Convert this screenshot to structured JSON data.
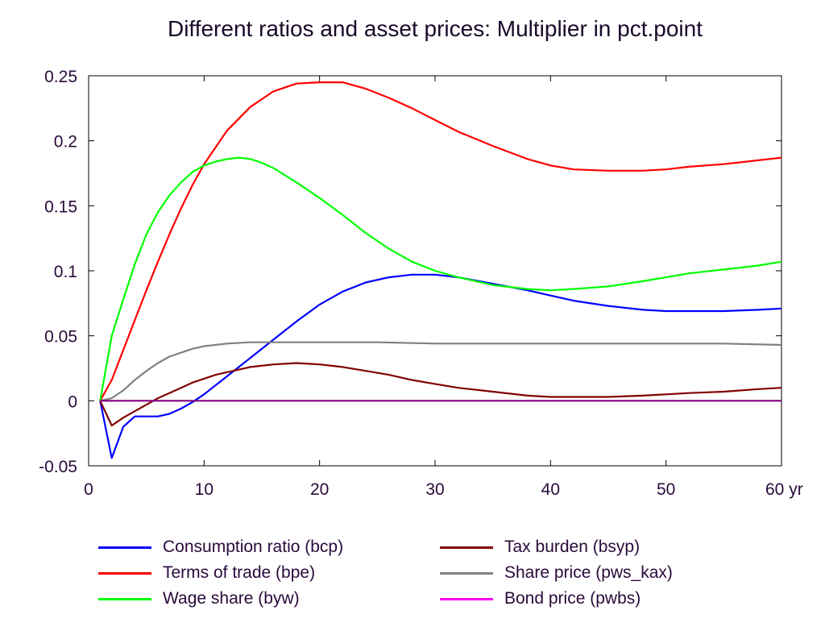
{
  "chart_data": {
    "type": "line",
    "title": "Different ratios and asset prices: Multiplier in pct.point",
    "xlabel": "",
    "ylabel": "",
    "xlim": [
      0,
      60
    ],
    "ylim": [
      -0.05,
      0.25
    ],
    "x_ticks": [
      0,
      10,
      20,
      30,
      40,
      50,
      60
    ],
    "x_tick_labels": [
      "0",
      "10",
      "20",
      "30",
      "40",
      "50",
      "60 yr"
    ],
    "y_ticks": [
      -0.05,
      0,
      0.05,
      0.1,
      0.15,
      0.2,
      0.25
    ],
    "y_tick_labels": [
      "-0.05",
      "0",
      "0.05",
      "0.1",
      "0.15",
      "0.2",
      "0.25"
    ],
    "grid": false,
    "legend_position": "bottom",
    "series": [
      {
        "name": "Consumption ratio (bcp)",
        "color": "#0000ff",
        "x": [
          1,
          2,
          3,
          4,
          5,
          6,
          7,
          8,
          9,
          10,
          12,
          14,
          16,
          18,
          20,
          22,
          24,
          26,
          28,
          30,
          32,
          35,
          38,
          40,
          42,
          45,
          48,
          50,
          52,
          55,
          58,
          60
        ],
        "y": [
          0,
          -0.044,
          -0.02,
          -0.012,
          -0.012,
          -0.012,
          -0.01,
          -0.006,
          -0.001,
          0.005,
          0.019,
          0.033,
          0.047,
          0.061,
          0.074,
          0.084,
          0.091,
          0.095,
          0.097,
          0.097,
          0.095,
          0.09,
          0.085,
          0.081,
          0.077,
          0.073,
          0.07,
          0.069,
          0.069,
          0.069,
          0.07,
          0.071
        ]
      },
      {
        "name": "Terms of trade (bpe)",
        "color": "#ff0000",
        "x": [
          1,
          2,
          3,
          4,
          5,
          6,
          7,
          8,
          9,
          10,
          12,
          14,
          16,
          18,
          20,
          22,
          24,
          26,
          28,
          30,
          32,
          35,
          38,
          40,
          42,
          45,
          48,
          50,
          52,
          55,
          58,
          60
        ],
        "y": [
          0,
          0.016,
          0.039,
          0.062,
          0.085,
          0.107,
          0.128,
          0.148,
          0.166,
          0.182,
          0.208,
          0.226,
          0.238,
          0.244,
          0.245,
          0.245,
          0.24,
          0.233,
          0.225,
          0.216,
          0.207,
          0.196,
          0.186,
          0.181,
          0.178,
          0.177,
          0.177,
          0.178,
          0.18,
          0.182,
          0.185,
          0.187
        ]
      },
      {
        "name": "Wage share (byw)",
        "color": "#00ff00",
        "x": [
          1,
          2,
          3,
          4,
          5,
          6,
          7,
          8,
          9,
          10,
          11,
          12,
          13,
          14,
          15,
          16,
          18,
          20,
          22,
          24,
          26,
          28,
          30,
          32,
          35,
          38,
          40,
          42,
          45,
          48,
          50,
          52,
          55,
          58,
          60
        ],
        "y": [
          0,
          0.05,
          0.078,
          0.105,
          0.128,
          0.145,
          0.158,
          0.168,
          0.176,
          0.181,
          0.184,
          0.186,
          0.187,
          0.186,
          0.183,
          0.179,
          0.168,
          0.156,
          0.143,
          0.129,
          0.117,
          0.107,
          0.1,
          0.095,
          0.089,
          0.086,
          0.085,
          0.086,
          0.088,
          0.092,
          0.095,
          0.098,
          0.101,
          0.104,
          0.107
        ]
      },
      {
        "name": "Tax burden (bsyp)",
        "color": "#800000",
        "x": [
          1,
          2,
          3,
          4,
          5,
          6,
          7,
          8,
          9,
          10,
          11,
          12,
          14,
          16,
          18,
          20,
          22,
          24,
          26,
          28,
          30,
          32,
          35,
          38,
          40,
          42,
          45,
          48,
          50,
          52,
          55,
          58,
          60
        ],
        "y": [
          0,
          -0.019,
          -0.013,
          -0.008,
          -0.003,
          0.002,
          0.006,
          0.01,
          0.014,
          0.017,
          0.02,
          0.022,
          0.026,
          0.028,
          0.029,
          0.028,
          0.026,
          0.023,
          0.02,
          0.016,
          0.013,
          0.01,
          0.007,
          0.004,
          0.003,
          0.003,
          0.003,
          0.004,
          0.005,
          0.006,
          0.007,
          0.009,
          0.01
        ]
      },
      {
        "name": "Share price (pws_kax)",
        "color": "#808080",
        "x": [
          1,
          2,
          3,
          4,
          5,
          6,
          7,
          8,
          9,
          10,
          12,
          14,
          16,
          18,
          20,
          25,
          30,
          35,
          40,
          45,
          50,
          55,
          60
        ],
        "y": [
          0,
          0.002,
          0.008,
          0.016,
          0.023,
          0.029,
          0.034,
          0.037,
          0.04,
          0.042,
          0.044,
          0.045,
          0.045,
          0.045,
          0.045,
          0.045,
          0.044,
          0.044,
          0.044,
          0.044,
          0.044,
          0.044,
          0.043
        ]
      },
      {
        "name": "Bond price (pwbs)",
        "color": "#ff00ff",
        "x": [
          1,
          60
        ],
        "y": [
          0,
          0
        ]
      }
    ],
    "zero_line_color": "#800080"
  },
  "legend": [
    {
      "label": "Consumption ratio (bcp)",
      "color": "#0000ff"
    },
    {
      "label": "Terms of trade (bpe)",
      "color": "#ff0000"
    },
    {
      "label": "Wage share (byw)",
      "color": "#00ff00"
    },
    {
      "label": "Tax burden (bsyp)",
      "color": "#800000"
    },
    {
      "label": "Share price (pws_kax)",
      "color": "#808080"
    },
    {
      "label": "Bond price (pwbs)",
      "color": "#ff00ff"
    }
  ]
}
